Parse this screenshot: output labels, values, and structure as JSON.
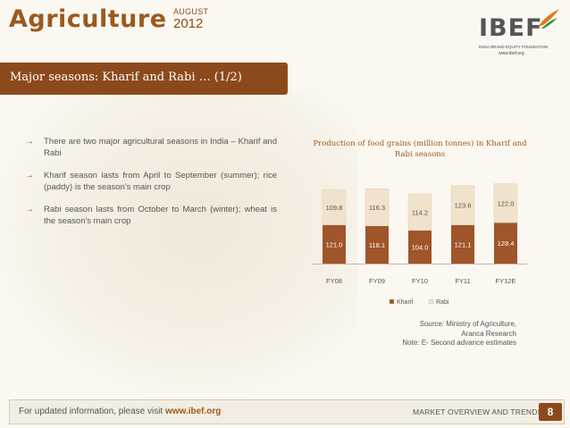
{
  "header": {
    "title": "Agriculture",
    "month": "AUGUST",
    "year": "2012",
    "logo_text": "IBEF",
    "logo_subtitle": "INDIA BRAND EQUITY FOUNDATION",
    "logo_url": "www.ibef.org"
  },
  "section": {
    "title": "Major seasons: Kharif and Rabi … (1/2)"
  },
  "bullets": [
    "There are two major agricultural seasons in India – Kharif and Rabi",
    "Kharif season lasts from April to September (summer); rice (paddy) is the season's main crop",
    "Rabi season lasts from October to March (winter); wheat is the season's main crop"
  ],
  "chart_data": {
    "type": "bar",
    "stacked": true,
    "title": "Production of food grains (million tonnes) in Kharif and Rabi seasons",
    "categories": [
      "FY08",
      "FY09",
      "FY10",
      "FY11",
      "FY12E"
    ],
    "series": [
      {
        "name": "Kharif",
        "values": [
          121.0,
          118.1,
          104.0,
          121.1,
          128.4
        ],
        "color": "#a0552a"
      },
      {
        "name": "Rabi",
        "values": [
          109.8,
          116.3,
          114.2,
          123.6,
          122.0
        ],
        "color": "#f1e2cc"
      }
    ],
    "ylim": [
      0,
      280
    ],
    "legend": "bottom",
    "grid": false
  },
  "source": {
    "label": "Source:",
    "text": "Ministry of Agriculture,",
    "line2": "Aranca Research",
    "note": "Note: E- Second advance estimates"
  },
  "footer": {
    "left_text": "For updated information, please visit",
    "link": "www.ibef.org",
    "right_text": "MARKET OVERVIEW AND TRENDS",
    "page": "8"
  }
}
